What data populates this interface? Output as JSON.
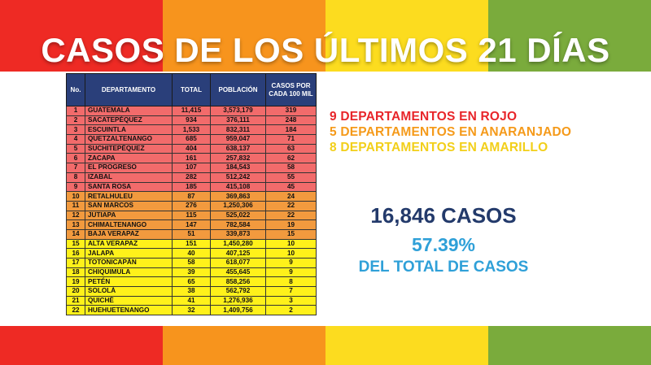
{
  "colors": {
    "stripe_1": "#ee2a24",
    "stripe_2": "#f7941d",
    "stripe_3": "#fcdc1f",
    "stripe_4": "#7aab3c",
    "header_bg": "#2a3f7a",
    "rojo": "#f26b6b",
    "naranja": "#f29a3e",
    "amarillo": "#fff11a"
  },
  "title": "CASOS DE LOS ÚLTIMOS 21 DÍAS",
  "table": {
    "headers": [
      "No.",
      "DEPARTAMENTO",
      "TOTAL",
      "POBLACIÓN",
      "CASOS POR CADA 100 MIL"
    ],
    "rows": [
      {
        "no": "1",
        "dep": "GUATEMALA",
        "total": "11,415",
        "pob": "3,573,179",
        "tasa": "319",
        "nivel": "rojo"
      },
      {
        "no": "2",
        "dep": "SACATEPÉQUEZ",
        "total": "934",
        "pob": "376,111",
        "tasa": "248",
        "nivel": "rojo"
      },
      {
        "no": "3",
        "dep": "ESCUINTLA",
        "total": "1,533",
        "pob": "832,311",
        "tasa": "184",
        "nivel": "rojo"
      },
      {
        "no": "4",
        "dep": "QUETZALTENANGO",
        "total": "685",
        "pob": "959,047",
        "tasa": "71",
        "nivel": "rojo"
      },
      {
        "no": "5",
        "dep": "SUCHITEPÉQUEZ",
        "total": "404",
        "pob": "638,137",
        "tasa": "63",
        "nivel": "rojo"
      },
      {
        "no": "6",
        "dep": "ZACAPA",
        "total": "161",
        "pob": "257,832",
        "tasa": "62",
        "nivel": "rojo"
      },
      {
        "no": "7",
        "dep": "EL PROGRESO",
        "total": "107",
        "pob": "184,543",
        "tasa": "58",
        "nivel": "rojo"
      },
      {
        "no": "8",
        "dep": "IZABAL",
        "total": "282",
        "pob": "512,242",
        "tasa": "55",
        "nivel": "rojo"
      },
      {
        "no": "9",
        "dep": "SANTA ROSA",
        "total": "185",
        "pob": "415,108",
        "tasa": "45",
        "nivel": "rojo"
      },
      {
        "no": "10",
        "dep": "RETALHULEU",
        "total": "87",
        "pob": "369,863",
        "tasa": "24",
        "nivel": "naranja"
      },
      {
        "no": "11",
        "dep": "SAN MARCOS",
        "total": "276",
        "pob": "1,250,306",
        "tasa": "22",
        "nivel": "naranja"
      },
      {
        "no": "12",
        "dep": "JUTIAPA",
        "total": "115",
        "pob": "525,022",
        "tasa": "22",
        "nivel": "naranja"
      },
      {
        "no": "13",
        "dep": "CHIMALTENANGO",
        "total": "147",
        "pob": "782,584",
        "tasa": "19",
        "nivel": "naranja"
      },
      {
        "no": "14",
        "dep": "BAJA VERAPAZ",
        "total": "51",
        "pob": "339,873",
        "tasa": "15",
        "nivel": "naranja"
      },
      {
        "no": "15",
        "dep": "ALTA VERAPAZ",
        "total": "151",
        "pob": "1,450,280",
        "tasa": "10",
        "nivel": "amarillo"
      },
      {
        "no": "16",
        "dep": "JALAPA",
        "total": "40",
        "pob": "407,125",
        "tasa": "10",
        "nivel": "amarillo"
      },
      {
        "no": "17",
        "dep": "TOTONICAPÁN",
        "total": "58",
        "pob": "618,077",
        "tasa": "9",
        "nivel": "amarillo"
      },
      {
        "no": "18",
        "dep": "CHIQUIMULA",
        "total": "39",
        "pob": "455,645",
        "tasa": "9",
        "nivel": "amarillo"
      },
      {
        "no": "19",
        "dep": "PETÉN",
        "total": "65",
        "pob": "858,256",
        "tasa": "8",
        "nivel": "amarillo"
      },
      {
        "no": "20",
        "dep": "SOLOLÁ",
        "total": "38",
        "pob": "562,792",
        "tasa": "7",
        "nivel": "amarillo"
      },
      {
        "no": "21",
        "dep": "QUICHÉ",
        "total": "41",
        "pob": "1,276,936",
        "tasa": "3",
        "nivel": "amarillo"
      },
      {
        "no": "22",
        "dep": "HUEHUETENANGO",
        "total": "32",
        "pob": "1,409,756",
        "tasa": "2",
        "nivel": "amarillo"
      }
    ]
  },
  "summary": {
    "rojo": "9 DEPARTAMENTOS EN ROJO",
    "naranja": "5 DEPARTAMENTOS EN ANARANJADO",
    "amarillo": "8 DEPARTAMENTOS EN AMARILLO"
  },
  "stats": {
    "casos": "16,846 CASOS",
    "porcentaje": "57.39%",
    "del_total": "DEL TOTAL DE CASOS"
  }
}
